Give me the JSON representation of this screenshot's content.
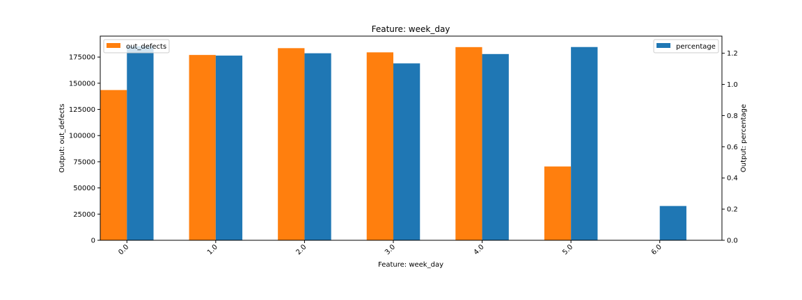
{
  "chart_data": {
    "type": "bar",
    "title": "Feature: week_day",
    "xlabel": "Feature: week_day",
    "ylabel_left": "Output: out_defects",
    "ylabel_right": "Output: percentage",
    "categories": [
      "0.0",
      "1.0",
      "2.0",
      "3.0",
      "4.0",
      "5.0",
      "6.0"
    ],
    "series": [
      {
        "name": "out_defects",
        "axis": "left",
        "color": "#ff7f0e",
        "values": [
          143500,
          177000,
          183500,
          179500,
          184500,
          70500,
          0
        ]
      },
      {
        "name": "percentage",
        "axis": "right",
        "color": "#1f77b4",
        "values": [
          1.245,
          1.185,
          1.2,
          1.135,
          1.195,
          1.24,
          0.22
        ]
      }
    ],
    "ylim_left": [
      0,
      195000
    ],
    "ylim_right": [
      0,
      1.31
    ],
    "yticks_left": [
      "0",
      "25000",
      "50000",
      "75000",
      "100000",
      "125000",
      "150000",
      "175000"
    ],
    "yticks_left_values": [
      0,
      25000,
      50000,
      75000,
      100000,
      125000,
      150000,
      175000
    ],
    "yticks_right": [
      "0.0",
      "0.2",
      "0.4",
      "0.6",
      "0.8",
      "1.0",
      "1.2"
    ],
    "yticks_right_values": [
      0,
      0.2,
      0.4,
      0.6,
      0.8,
      1.0,
      1.2
    ],
    "legend_left_placement": "top-left",
    "legend_right_placement": "top-right",
    "grid": false
  }
}
